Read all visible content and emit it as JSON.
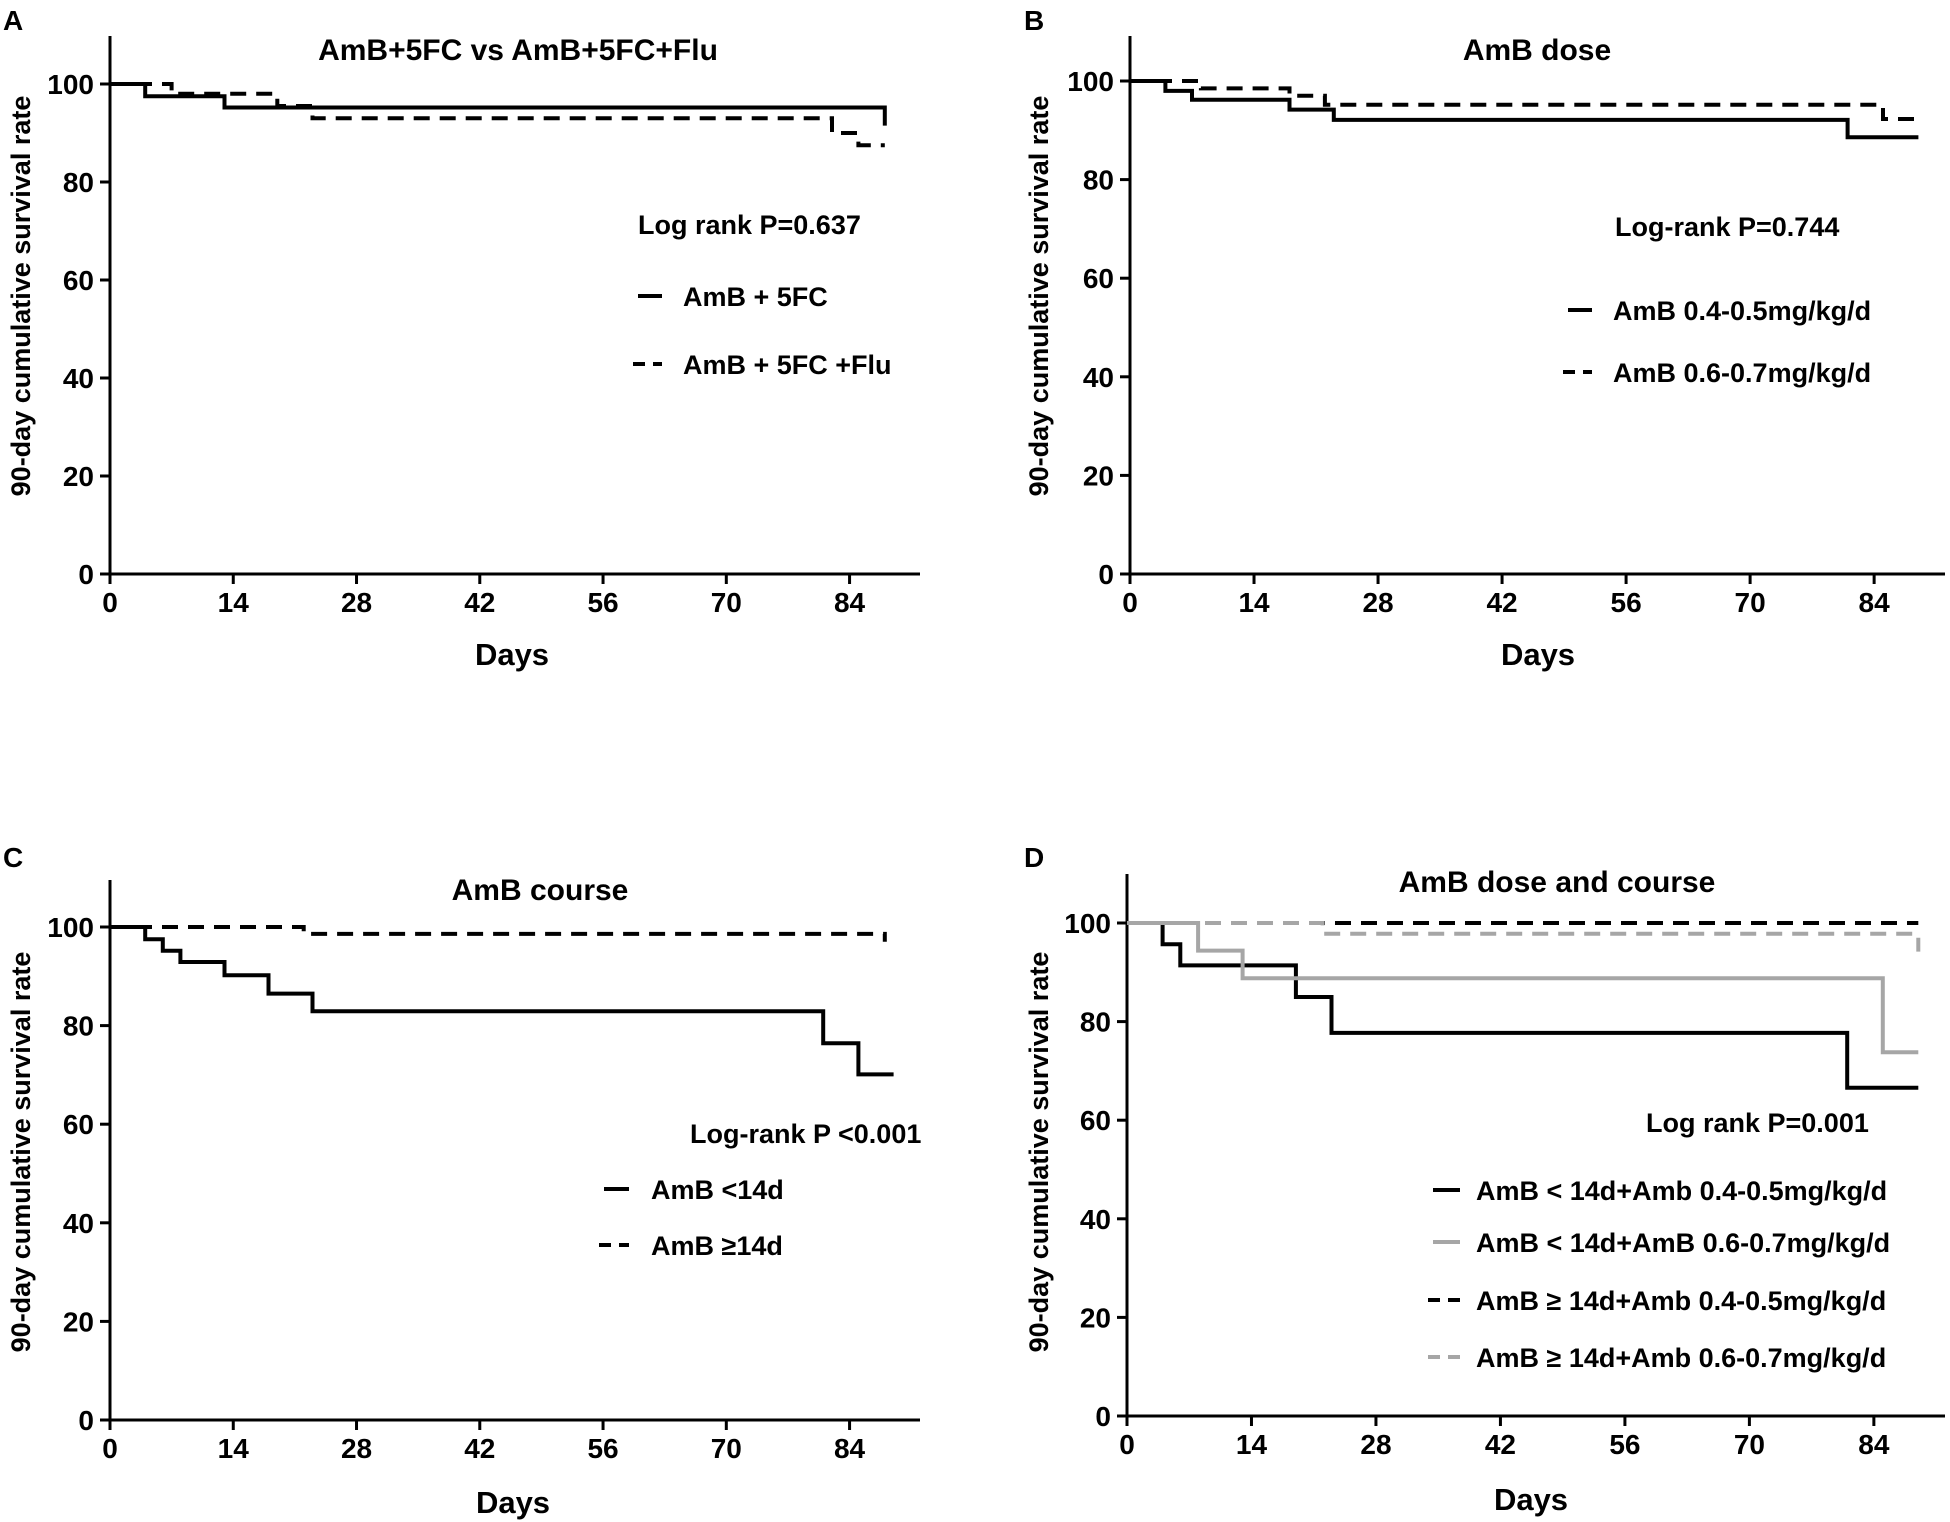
{
  "chart_data": [
    {
      "type": "line",
      "panel_label": "A",
      "title": "AmB+5FC vs AmB+5FC+Flu",
      "xlabel": "Days",
      "ylabel": "90-day cumulative survival rate",
      "xlim": [
        0,
        92
      ],
      "ylim": [
        0,
        110
      ],
      "xticks": [
        "0",
        "14",
        "28",
        "42",
        "56",
        "70",
        "84"
      ],
      "yticks": [
        "0",
        "20",
        "40",
        "60",
        "80",
        "100"
      ],
      "stat_text": "Log rank P=0.637",
      "series": [
        {
          "name": "AmB + 5FC",
          "style": "solid",
          "color": "#000000",
          "x": [
            0,
            4,
            4,
            13,
            13,
            23,
            23,
            88,
            88
          ],
          "y": [
            100,
            100,
            97.5,
            97.5,
            95.2,
            95.2,
            95.2,
            95.2,
            91.5
          ]
        },
        {
          "name": "AmB + 5FC +Flu",
          "style": "dashed",
          "color": "#000000",
          "x": [
            0,
            7,
            7,
            19,
            19,
            23,
            23,
            82,
            82,
            85,
            85,
            88
          ],
          "y": [
            100,
            100,
            98,
            98,
            95.5,
            95.5,
            93,
            93,
            90,
            90,
            87.5,
            87.5
          ]
        }
      ]
    },
    {
      "type": "line",
      "panel_label": "B",
      "title": "AmB dose",
      "xlabel": "Days",
      "ylabel": "90-day cumulative survival rate",
      "xlim": [
        0,
        92
      ],
      "ylim": [
        0,
        110
      ],
      "xticks": [
        "0",
        "14",
        "28",
        "42",
        "56",
        "70",
        "84"
      ],
      "yticks": [
        "0",
        "20",
        "40",
        "60",
        "80",
        "100"
      ],
      "stat_text": "Log-rank P=0.744",
      "series": [
        {
          "name": "AmB 0.4-0.5mg/kg/d",
          "style": "solid",
          "color": "#000000",
          "x": [
            0,
            4,
            4,
            7,
            7,
            18,
            18,
            23,
            23,
            81,
            81,
            89
          ],
          "y": [
            100,
            100,
            98,
            98,
            96.2,
            96.2,
            94.2,
            94.2,
            92.1,
            92.1,
            88.6,
            88.6
          ]
        },
        {
          "name": "AmB 0.6-0.7mg/kg/d",
          "style": "dashed",
          "color": "#000000",
          "x": [
            0,
            8,
            8,
            18,
            18,
            22,
            22,
            85,
            85,
            89
          ],
          "y": [
            100,
            100,
            98.5,
            98.5,
            97,
            97,
            95.2,
            95.2,
            92.3,
            92.3
          ]
        }
      ]
    },
    {
      "type": "line",
      "panel_label": "C",
      "title": "AmB course",
      "xlabel": "Days",
      "ylabel": "90-day cumulative survival rate",
      "xlim": [
        0,
        92
      ],
      "ylim": [
        0,
        110
      ],
      "xticks": [
        "0",
        "14",
        "28",
        "42",
        "56",
        "70",
        "84"
      ],
      "yticks": [
        "0",
        "20",
        "40",
        "60",
        "80",
        "100"
      ],
      "stat_text": "Log-rank P <0.001",
      "series": [
        {
          "name": "AmB <14d",
          "style": "solid",
          "color": "#000000",
          "x": [
            0,
            4,
            4,
            6,
            6,
            8,
            8,
            13,
            13,
            18,
            18,
            23,
            23,
            81,
            81,
            85,
            85,
            89
          ],
          "y": [
            100,
            100,
            97.5,
            97.5,
            95.2,
            95.2,
            92.9,
            92.9,
            90.2,
            90.2,
            86.5,
            86.5,
            82.9,
            82.9,
            76.4,
            76.4,
            70.1,
            70.1
          ]
        },
        {
          "name": "AmB ≥14d",
          "style": "dashed",
          "color": "#000000",
          "x": [
            0,
            22,
            22,
            88,
            88
          ],
          "y": [
            100,
            100,
            98.6,
            98.6,
            97
          ]
        }
      ]
    },
    {
      "type": "line",
      "panel_label": "D",
      "title": "AmB dose and course",
      "xlabel": "Days",
      "ylabel": "90-day cumulative survival rate",
      "xlim": [
        0,
        92
      ],
      "ylim": [
        0,
        110
      ],
      "xticks": [
        "0",
        "14",
        "28",
        "42",
        "56",
        "70",
        "84"
      ],
      "yticks": [
        "0",
        "20",
        "40",
        "60",
        "80",
        "100"
      ],
      "stat_text": "Log rank P=0.001",
      "series": [
        {
          "name": "AmB < 14d+Amb 0.4-0.5mg/kg/d",
          "style": "solid",
          "color": "#000000",
          "x": [
            0,
            4,
            4,
            6,
            6,
            19,
            19,
            23,
            23,
            81,
            81,
            89
          ],
          "y": [
            100,
            100,
            95.7,
            95.7,
            91.4,
            91.4,
            85,
            85,
            77.7,
            77.7,
            66.6,
            66.6
          ]
        },
        {
          "name": "AmB < 14d+AmB 0.6-0.7mg/kg/d",
          "style": "solid",
          "color": "#a6a6a6",
          "x": [
            0,
            8,
            8,
            13,
            13,
            85,
            85,
            89
          ],
          "y": [
            100,
            100,
            94.4,
            94.4,
            88.8,
            88.8,
            73.8,
            73.8
          ]
        },
        {
          "name": "AmB ≥ 14d+Amb 0.4-0.5mg/kg/d",
          "style": "dashed",
          "color": "#000000",
          "x": [
            0,
            89
          ],
          "y": [
            100,
            100
          ]
        },
        {
          "name": "AmB ≥ 14d+Amb 0.6-0.7mg/kg/d",
          "style": "dashed",
          "color": "#a6a6a6",
          "x": [
            0,
            22,
            22,
            89,
            89
          ],
          "y": [
            100,
            100,
            97.8,
            97.8,
            94.2
          ]
        }
      ]
    }
  ]
}
